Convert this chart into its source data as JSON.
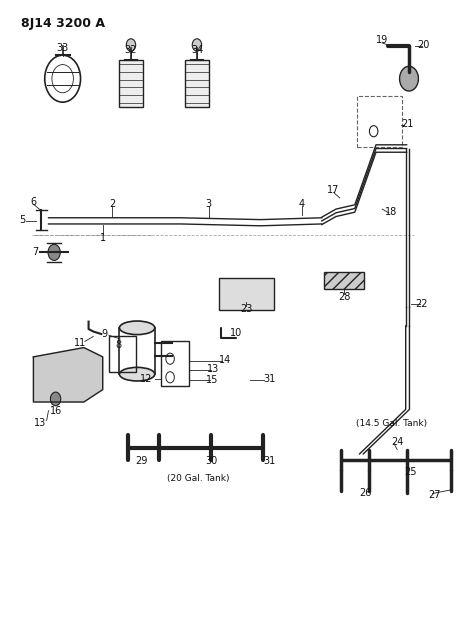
{
  "title": "8J14 3200 A",
  "bg_color": "#ffffff",
  "line_color": "#222222",
  "text_color": "#111111",
  "fig_width": 4.74,
  "fig_height": 6.21,
  "dpi": 100
}
